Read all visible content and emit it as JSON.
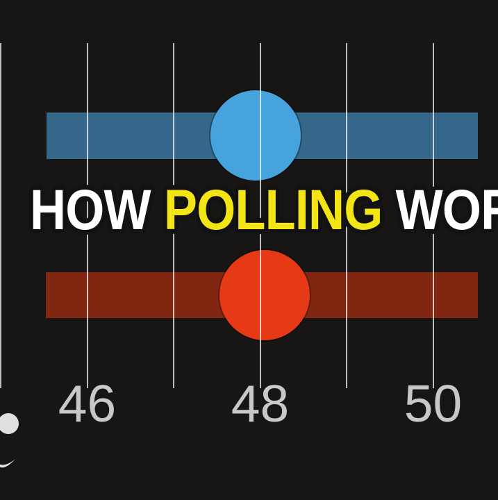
{
  "page": {
    "background_color": "#171615",
    "kind": "polling chart graphic"
  },
  "title": {
    "full_text": "HOW POLLING WORKS",
    "segments": [
      {
        "text": "HOW ",
        "color": "#ffffff"
      },
      {
        "text": "POLLING",
        "color": "#f2e415"
      },
      {
        "text": " WORKS",
        "color": "#ffffff"
      }
    ],
    "outline_color": "#121212"
  },
  "chart_data": {
    "type": "scatter",
    "subtype": "dot-with-uncertainty-interval",
    "orientation": "horizontal",
    "title": "HOW POLLING WORKS",
    "xlabel": "",
    "ylabel": "",
    "grid": "vertical-only",
    "legend": "none",
    "x_axis": {
      "min": 45,
      "max": 50.7,
      "gridline_values": [
        45,
        46,
        47,
        48,
        49,
        50
      ],
      "tick_labels": [
        {
          "value": 46,
          "label": "46"
        },
        {
          "value": 48,
          "label": "48"
        },
        {
          "value": 50,
          "label": "50"
        }
      ],
      "label_color": "#c8c8c8",
      "gridline_color": "rgba(255,255,255,0.72)"
    },
    "series": [
      {
        "name": "blue-candidate",
        "value": 47.95,
        "interval": [
          45.53,
          50.52
        ],
        "dot_color": "#46a3dc",
        "bar_color": "#34678a"
      },
      {
        "name": "red-candidate",
        "value": 48.05,
        "interval": [
          45.52,
          50.52
        ],
        "dot_color": "#e53a15",
        "bar_color": "#812711"
      }
    ]
  },
  "logo": {
    "color": "#e0e0e0",
    "shapes": [
      "dot-icon",
      "crescent-icon"
    ]
  }
}
